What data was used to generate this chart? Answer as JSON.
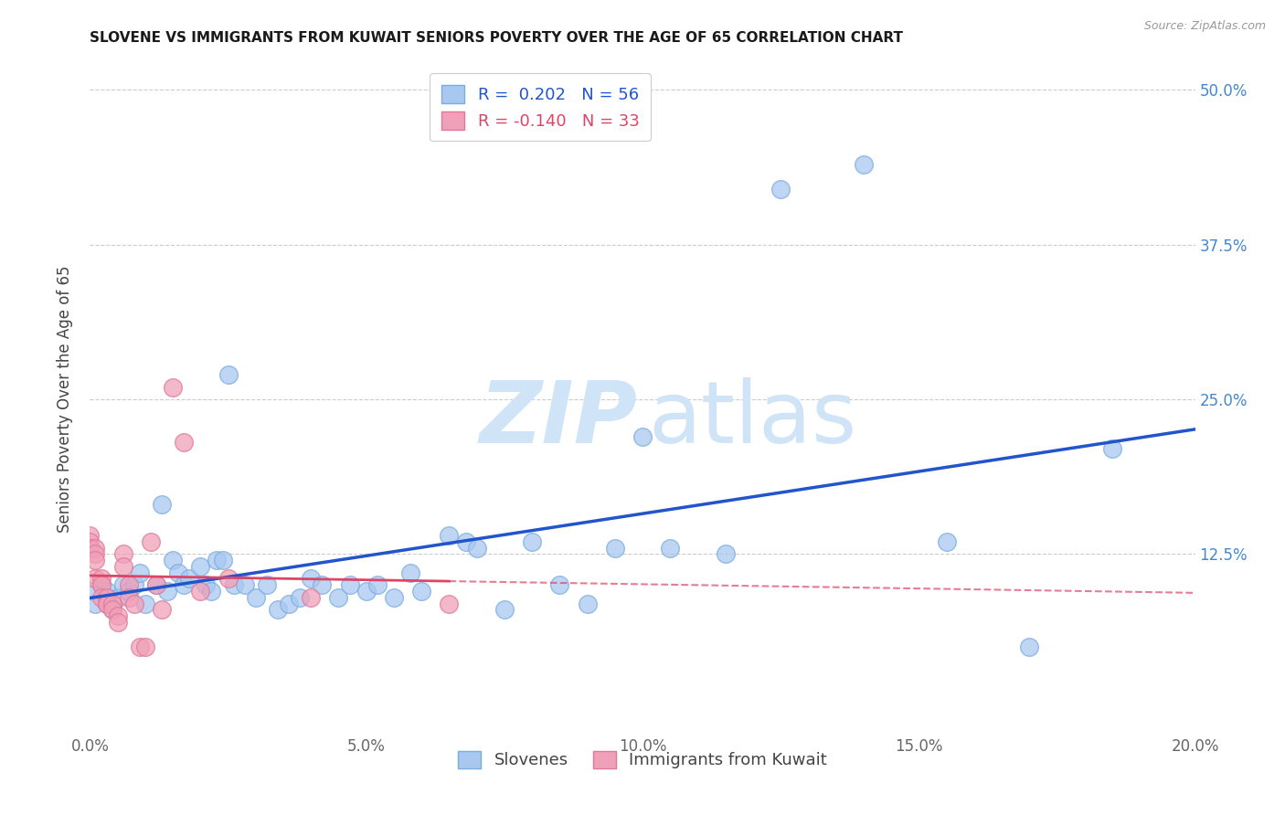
{
  "title": "SLOVENE VS IMMIGRANTS FROM KUWAIT SENIORS POVERTY OVER THE AGE OF 65 CORRELATION CHART",
  "source": "Source: ZipAtlas.com",
  "xlabel": "",
  "ylabel": "Seniors Poverty Over the Age of 65",
  "xlim": [
    0.0,
    0.2
  ],
  "ylim": [
    -0.02,
    0.52
  ],
  "xtick_labels": [
    "0.0%",
    "",
    "5.0%",
    "",
    "10.0%",
    "",
    "15.0%",
    "",
    "20.0%"
  ],
  "xtick_values": [
    0.0,
    0.025,
    0.05,
    0.075,
    0.1,
    0.125,
    0.15,
    0.175,
    0.2
  ],
  "xtick_major_labels": [
    "0.0%",
    "5.0%",
    "10.0%",
    "15.0%",
    "20.0%"
  ],
  "xtick_major_values": [
    0.0,
    0.05,
    0.1,
    0.15,
    0.2
  ],
  "ytick_values": [
    0.125,
    0.25,
    0.375,
    0.5
  ],
  "right_ytick_labels": [
    "50.0%",
    "37.5%",
    "25.0%",
    "12.5%"
  ],
  "right_ytick_values": [
    0.5,
    0.375,
    0.25,
    0.125
  ],
  "color_slovene": "#a8c8f0",
  "color_kuwait": "#f0a0b8",
  "edge_color_slovene": "#7aace0",
  "edge_color_kuwait": "#e07898",
  "line_color_slovene": "#2255cc",
  "line_color_kuwait": "#dd4466",
  "R_slovene": 0.202,
  "N_slovene": 56,
  "R_kuwait": -0.14,
  "N_kuwait": 33,
  "watermark_color": "#d0e4f8",
  "background_color": "#ffffff",
  "slovene_x": [
    0.0,
    0.001,
    0.002,
    0.003,
    0.004,
    0.005,
    0.006,
    0.007,
    0.008,
    0.009,
    0.01,
    0.012,
    0.013,
    0.014,
    0.015,
    0.016,
    0.017,
    0.018,
    0.02,
    0.021,
    0.022,
    0.023,
    0.024,
    0.025,
    0.026,
    0.028,
    0.03,
    0.032,
    0.034,
    0.036,
    0.038,
    0.04,
    0.042,
    0.045,
    0.047,
    0.05,
    0.052,
    0.055,
    0.058,
    0.06,
    0.065,
    0.068,
    0.07,
    0.075,
    0.08,
    0.085,
    0.09,
    0.095,
    0.1,
    0.105,
    0.115,
    0.125,
    0.14,
    0.155,
    0.17,
    0.185
  ],
  "slovene_y": [
    0.095,
    0.085,
    0.1,
    0.095,
    0.08,
    0.09,
    0.1,
    0.095,
    0.1,
    0.11,
    0.085,
    0.1,
    0.165,
    0.095,
    0.12,
    0.11,
    0.1,
    0.105,
    0.115,
    0.1,
    0.095,
    0.12,
    0.12,
    0.27,
    0.1,
    0.1,
    0.09,
    0.1,
    0.08,
    0.085,
    0.09,
    0.105,
    0.1,
    0.09,
    0.1,
    0.095,
    0.1,
    0.09,
    0.11,
    0.095,
    0.14,
    0.135,
    0.13,
    0.08,
    0.135,
    0.1,
    0.085,
    0.13,
    0.22,
    0.13,
    0.125,
    0.42,
    0.44,
    0.135,
    0.05,
    0.21
  ],
  "kuwait_x": [
    0.0,
    0.0,
    0.0,
    0.001,
    0.001,
    0.001,
    0.001,
    0.002,
    0.002,
    0.002,
    0.003,
    0.003,
    0.003,
    0.004,
    0.004,
    0.005,
    0.005,
    0.006,
    0.006,
    0.007,
    0.007,
    0.008,
    0.009,
    0.01,
    0.011,
    0.012,
    0.013,
    0.015,
    0.017,
    0.02,
    0.025,
    0.04,
    0.065
  ],
  "kuwait_y": [
    0.14,
    0.135,
    0.13,
    0.13,
    0.125,
    0.12,
    0.105,
    0.105,
    0.1,
    0.09,
    0.09,
    0.085,
    0.085,
    0.085,
    0.08,
    0.075,
    0.07,
    0.125,
    0.115,
    0.1,
    0.09,
    0.085,
    0.05,
    0.05,
    0.135,
    0.1,
    0.08,
    0.26,
    0.215,
    0.095,
    0.105,
    0.09,
    0.085
  ]
}
